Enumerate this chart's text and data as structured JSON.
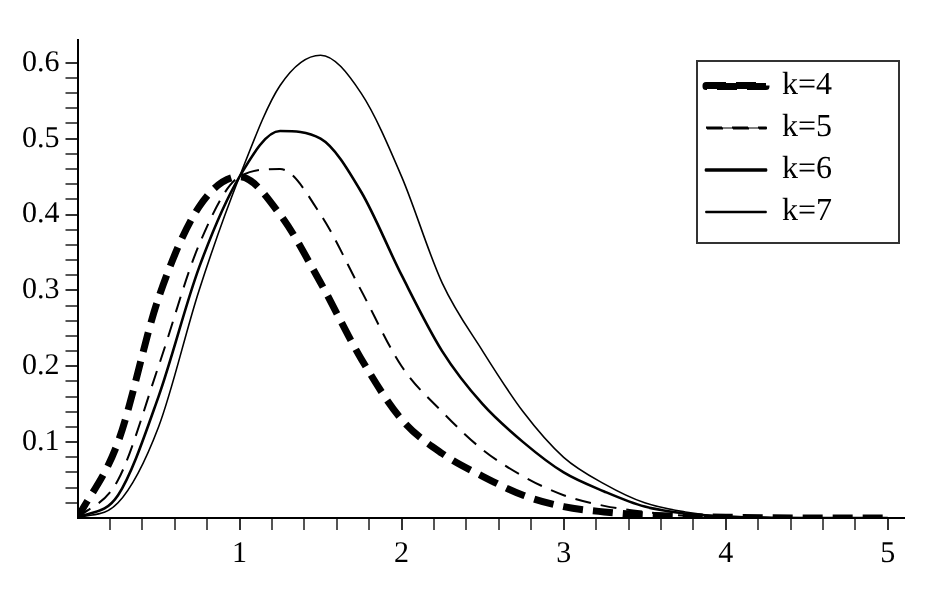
{
  "chart_data": {
    "type": "line",
    "x": [
      0,
      0.25,
      0.5,
      0.75,
      1,
      1.25,
      1.5,
      1.75,
      2,
      2.25,
      2.5,
      2.75,
      3,
      3.25,
      3.5,
      3.75,
      4,
      4.5,
      5
    ],
    "series": [
      {
        "name": "k=4",
        "color": "#000000",
        "line_style": "dashed",
        "values": [
          0,
          0.1,
          0.29,
          0.41,
          0.45,
          0.4,
          0.31,
          0.21,
          0.13,
          0.085,
          0.055,
          0.03,
          0.015,
          0.008,
          0.004,
          0.002,
          0.001,
          0,
          0
        ]
      },
      {
        "name": "k=5",
        "color": "#000000",
        "line_style": "dashed",
        "values": [
          0,
          0.05,
          0.2,
          0.36,
          0.45,
          0.46,
          0.4,
          0.3,
          0.2,
          0.14,
          0.09,
          0.055,
          0.03,
          0.016,
          0.008,
          0.003,
          0.001,
          0,
          0
        ]
      },
      {
        "name": "k=6",
        "color": "#000000",
        "line_style": "solid",
        "values": [
          0,
          0.03,
          0.16,
          0.33,
          0.45,
          0.51,
          0.5,
          0.43,
          0.32,
          0.22,
          0.15,
          0.1,
          0.06,
          0.035,
          0.015,
          0.006,
          0.002,
          0,
          0
        ]
      },
      {
        "name": "k=7",
        "color": "#000000",
        "line_style": "solid",
        "values": [
          0,
          0.02,
          0.12,
          0.3,
          0.45,
          0.57,
          0.61,
          0.56,
          0.45,
          0.31,
          0.22,
          0.14,
          0.08,
          0.045,
          0.02,
          0.008,
          0.002,
          0,
          0
        ]
      }
    ],
    "xlim": [
      0,
      5.1
    ],
    "xticks": [
      {
        "value": 0.2,
        "label": null
      },
      {
        "value": 0.4,
        "label": null
      },
      {
        "value": 0.6,
        "label": null
      },
      {
        "value": 0.8,
        "label": null
      },
      1,
      {
        "value": 1.2,
        "label": null
      },
      {
        "value": 1.4,
        "label": null
      },
      {
        "value": 1.6,
        "label": null
      },
      {
        "value": 1.8,
        "label": null
      },
      2,
      {
        "value": 2.2,
        "label": null
      },
      {
        "value": 2.4,
        "label": null
      },
      {
        "value": 2.6,
        "label": null
      },
      {
        "value": 2.8,
        "label": null
      },
      3,
      {
        "value": 3.2,
        "label": null
      },
      {
        "value": 3.4,
        "label": null
      },
      {
        "value": 3.6,
        "label": null
      },
      {
        "value": 3.8,
        "label": null
      },
      4,
      {
        "value": 4.2,
        "label": null
      },
      {
        "value": 4.4,
        "label": null
      },
      {
        "value": 4.6,
        "label": null
      },
      {
        "value": 4.8,
        "label": null
      },
      5
    ],
    "ylim": [
      0,
      0.63
    ],
    "yticks": [
      {
        "value": 0.02,
        "label": null
      },
      {
        "value": 0.04,
        "label": null
      },
      {
        "value": 0.06,
        "label": null
      },
      {
        "value": 0.08,
        "label": null
      },
      0.1,
      {
        "value": 0.12,
        "label": null
      },
      {
        "value": 0.14,
        "label": null
      },
      {
        "value": 0.16,
        "label": null
      },
      {
        "value": 0.18,
        "label": null
      },
      0.2,
      {
        "value": 0.22,
        "label": null
      },
      {
        "value": 0.24,
        "label": null
      },
      {
        "value": 0.26,
        "label": null
      },
      {
        "value": 0.28,
        "label": null
      },
      0.3,
      {
        "value": 0.32,
        "label": null
      },
      {
        "value": 0.34,
        "label": null
      },
      {
        "value": 0.36,
        "label": null
      },
      {
        "value": 0.38,
        "label": null
      },
      0.4,
      {
        "value": 0.42,
        "label": null
      },
      {
        "value": 0.44,
        "label": null
      },
      {
        "value": 0.46,
        "label": null
      },
      {
        "value": 0.48,
        "label": null
      },
      0.5,
      {
        "value": 0.52,
        "label": null
      },
      {
        "value": 0.54,
        "label": null
      },
      {
        "value": 0.56,
        "label": null
      },
      {
        "value": 0.58,
        "label": null
      },
      0.6
    ],
    "grid": false,
    "legend": "top right",
    "marker": "none"
  }
}
